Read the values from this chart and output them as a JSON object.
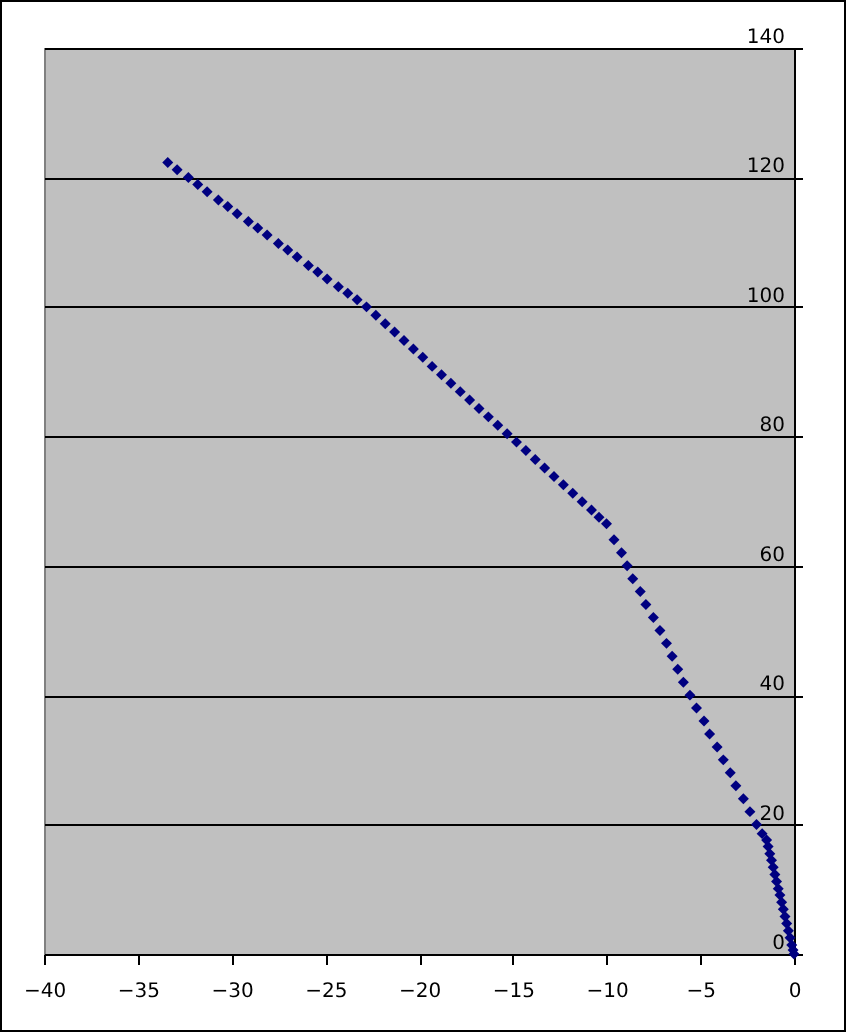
{
  "chart_data": {
    "type": "scatter",
    "marker": "diamond",
    "grid": "y",
    "xlim": [
      -40,
      0
    ],
    "xticks": [
      -40,
      -35,
      -30,
      -25,
      -20,
      -15,
      -10,
      -5,
      0
    ],
    "ylim": [
      0,
      140
    ],
    "yticks": [
      0,
      20,
      40,
      60,
      80,
      100,
      120,
      140
    ],
    "x": [
      -33.4,
      -32.9,
      -32.3,
      -31.8,
      -31.3,
      -30.7,
      -30.2,
      -29.7,
      -29.1,
      -28.6,
      -28.1,
      -27.5,
      -27.0,
      -26.5,
      -25.9,
      -25.4,
      -24.9,
      -24.3,
      -23.8,
      -23.3,
      -22.8,
      -22.3,
      -21.8,
      -21.3,
      -20.8,
      -20.3,
      -19.8,
      -19.3,
      -18.8,
      -18.3,
      -17.8,
      -17.3,
      -16.8,
      -16.3,
      -15.8,
      -15.3,
      -14.8,
      -14.3,
      -13.8,
      -13.3,
      -12.8,
      -12.3,
      -11.8,
      -11.3,
      -10.8,
      -10.4,
      -10.0,
      -9.6,
      -9.2,
      -8.9,
      -8.6,
      -8.2,
      -7.9,
      -7.5,
      -7.15,
      -6.8,
      -6.5,
      -6.2,
      -5.9,
      -5.55,
      -5.2,
      -4.8,
      -4.5,
      -4.1,
      -3.77,
      -3.4,
      -3.1,
      -2.7,
      -2.35,
      -2.0,
      -1.7,
      -1.46,
      -1.38,
      -1.29,
      -1.2,
      -1.11,
      -1.02,
      -0.93,
      -0.84,
      -0.75,
      -0.66,
      -0.57,
      -0.48,
      -0.39,
      -0.3,
      -0.21,
      -0.12,
      -0.05,
      0
    ],
    "series": [
      {
        "color": "#000080",
        "values": [
          122.3,
          121.2,
          120.0,
          118.9,
          117.8,
          116.5,
          115.5,
          114.4,
          113.2,
          112.2,
          111.1,
          109.8,
          108.8,
          107.7,
          106.4,
          105.4,
          104.3,
          103.1,
          102.1,
          101.1,
          100.0,
          98.7,
          97.4,
          96.1,
          94.8,
          93.5,
          92.2,
          90.8,
          89.5,
          88.2,
          86.9,
          85.6,
          84.3,
          83.0,
          81.7,
          80.4,
          79.1,
          77.8,
          76.4,
          75.1,
          73.8,
          72.5,
          71.2,
          69.9,
          68.6,
          67.5,
          66.5,
          64,
          62,
          60,
          58,
          56,
          54,
          52,
          50,
          48,
          46,
          44,
          42,
          40,
          38,
          36,
          34,
          32,
          30,
          28,
          26,
          24,
          22,
          20,
          18.6,
          17.6,
          16.6,
          15.5,
          14.5,
          13.4,
          12.3,
          11.2,
          10.1,
          9.1,
          8,
          6.9,
          5.8,
          4.7,
          3.6,
          2.5,
          1.4,
          0.6,
          0
        ]
      }
    ]
  }
}
